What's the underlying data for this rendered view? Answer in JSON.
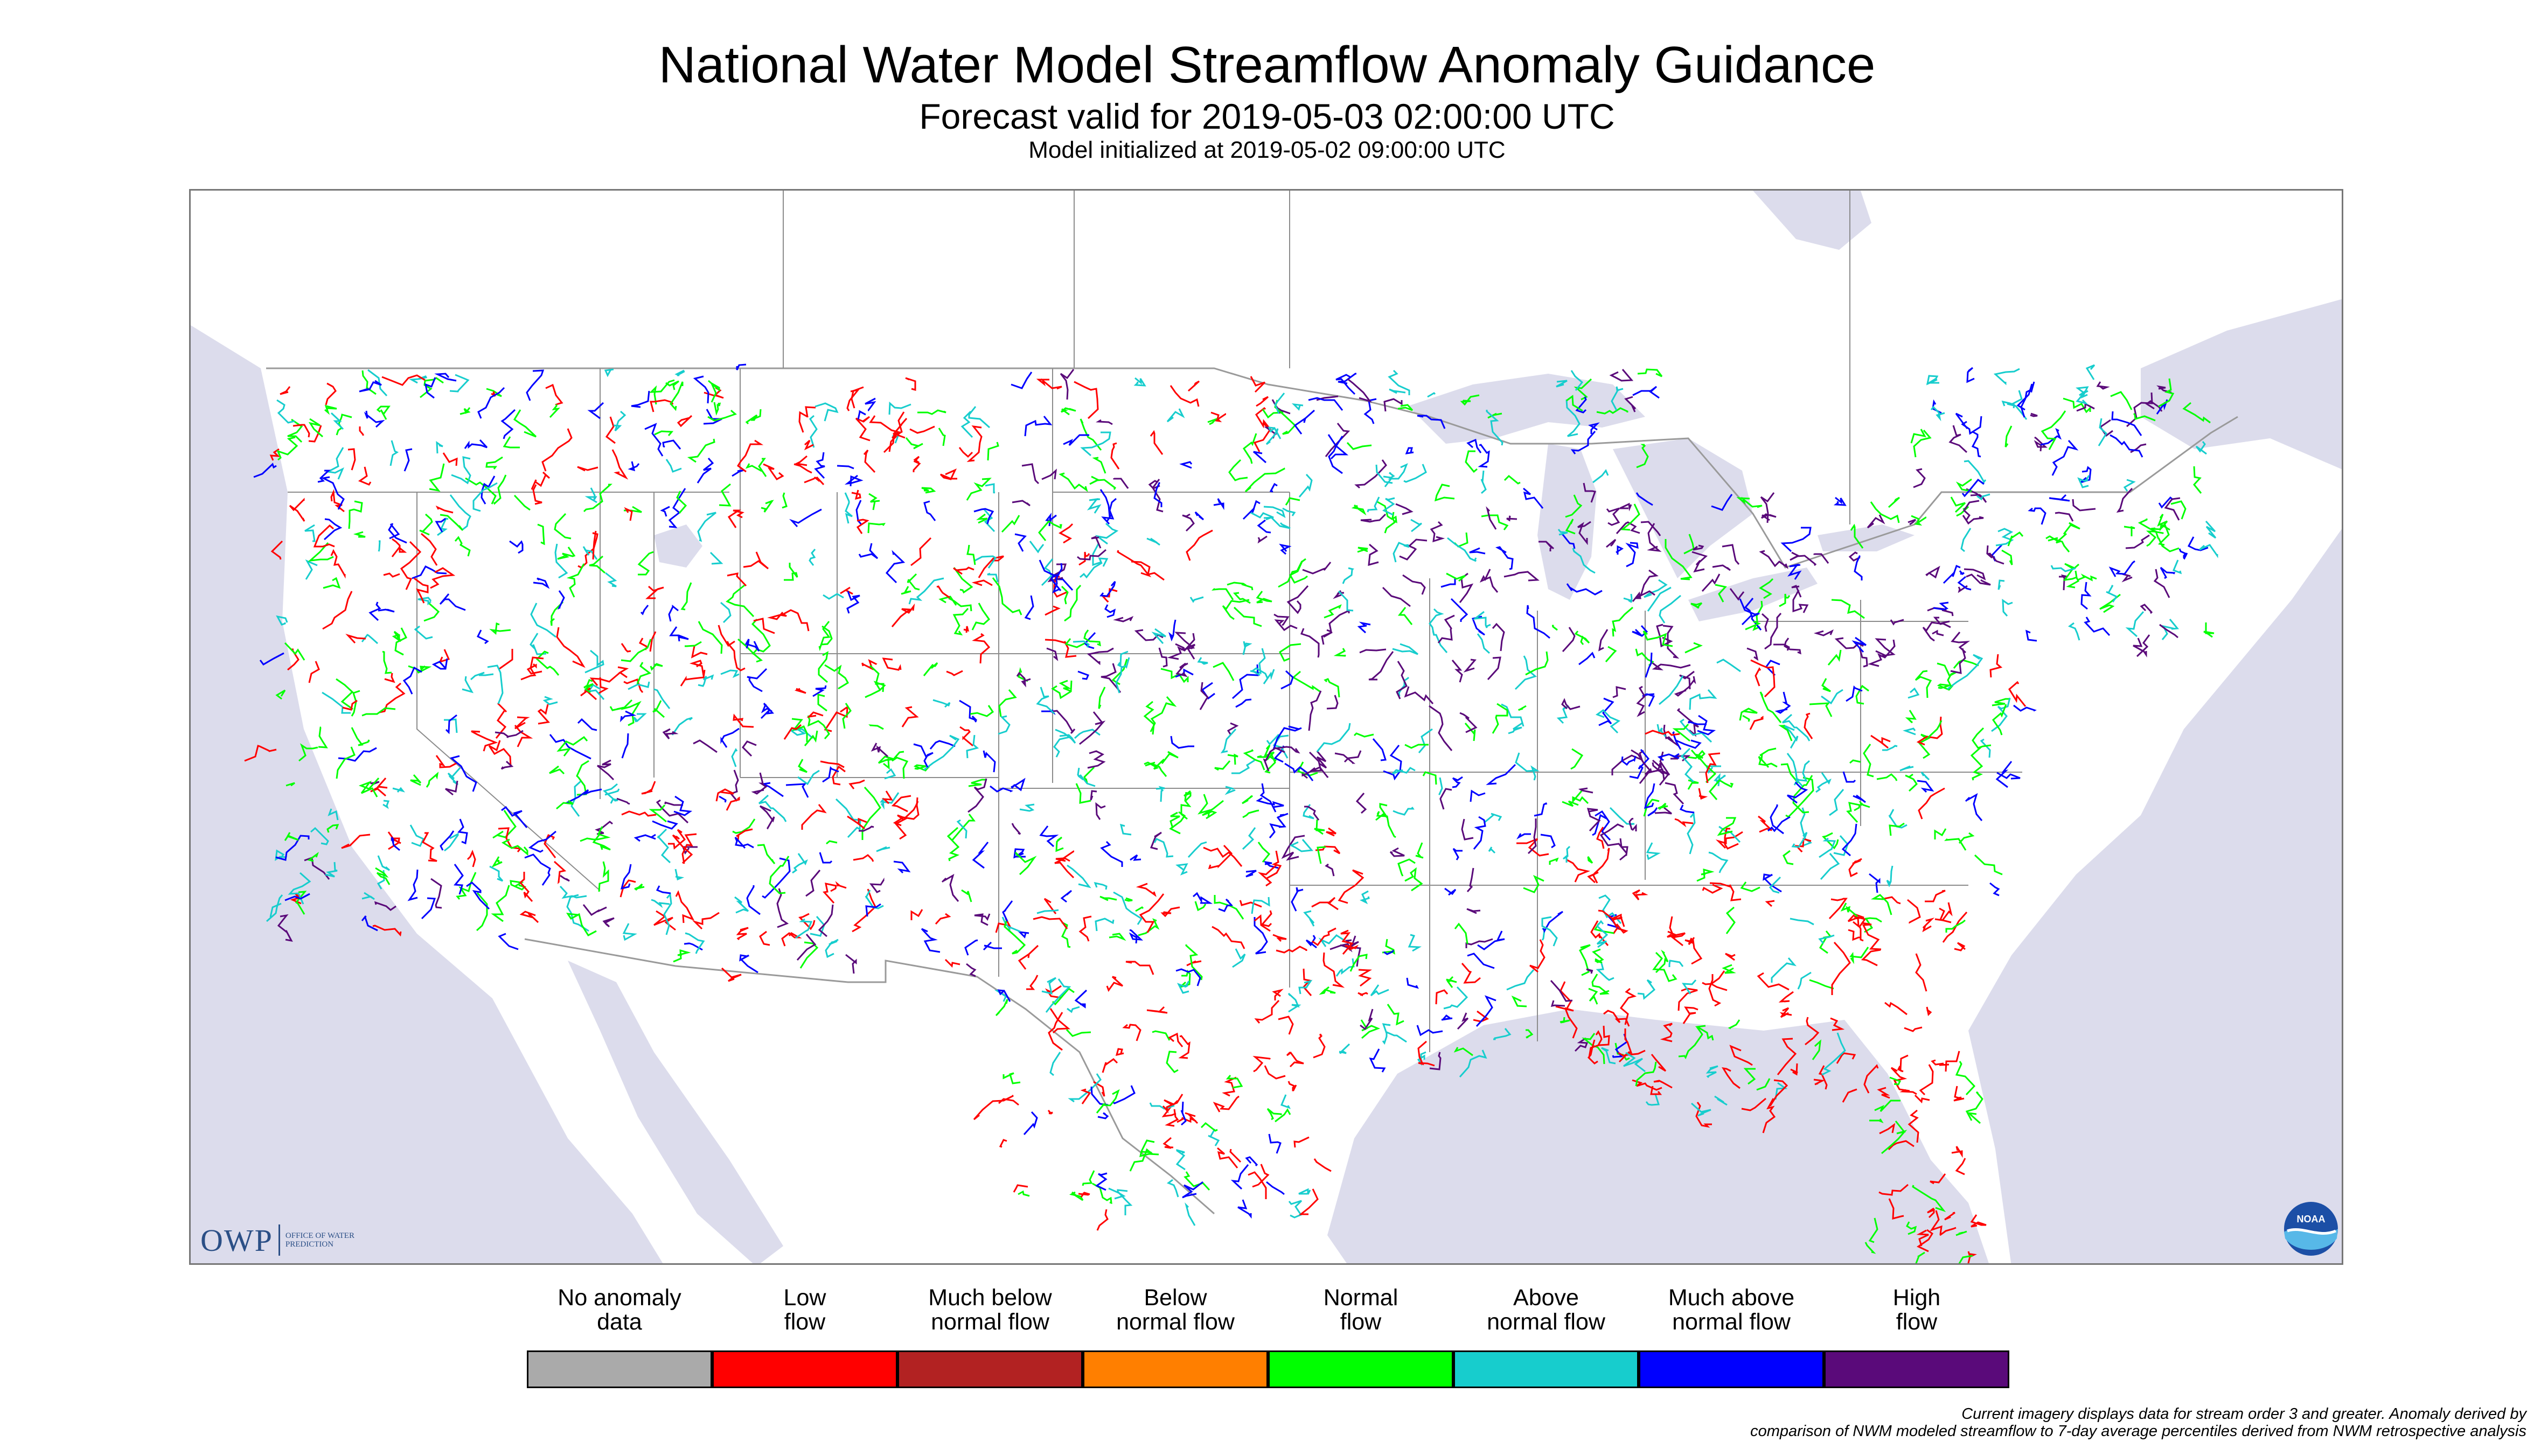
{
  "header": {
    "title": "National Water Model Streamflow Anomaly Guidance",
    "subtitle": "Forecast valid for 2019-05-03 02:00:00 UTC",
    "init_line": "Model initialized at 2019-05-02 09:00:00 UTC"
  },
  "map": {
    "land_color": "#ffffff",
    "water_color": "#dcdcec",
    "border_color": "#9a9a9a",
    "state_line_color": "#8c8c8c"
  },
  "logos": {
    "owp_letters": "OWP",
    "owp_subtitle": "OFFICE OF WATER PREDICTION",
    "noaa_text": "NOAA"
  },
  "legend": [
    {
      "label": "No anomaly\ndata",
      "color": "#aaaaaa"
    },
    {
      "label": "Low\nflow",
      "color": "#ff0000"
    },
    {
      "label": "Much below\nnormal flow",
      "color": "#b22222"
    },
    {
      "label": "Below\nnormal flow",
      "color": "#ff7f00"
    },
    {
      "label": "Normal\nflow",
      "color": "#00ff00"
    },
    {
      "label": "Above\nnormal flow",
      "color": "#17cdcd"
    },
    {
      "label": "Much above\nnormal flow",
      "color": "#0000ff"
    },
    {
      "label": "High\nflow",
      "color": "#5a0a7a"
    }
  ],
  "footnote": {
    "line1": "Current imagery displays data for stream order 3 and greater. Anomaly derived by",
    "line2": "comparison of NWM modeled streamflow to 7-day average percentiles derived from NWM retrospective analysis"
  }
}
